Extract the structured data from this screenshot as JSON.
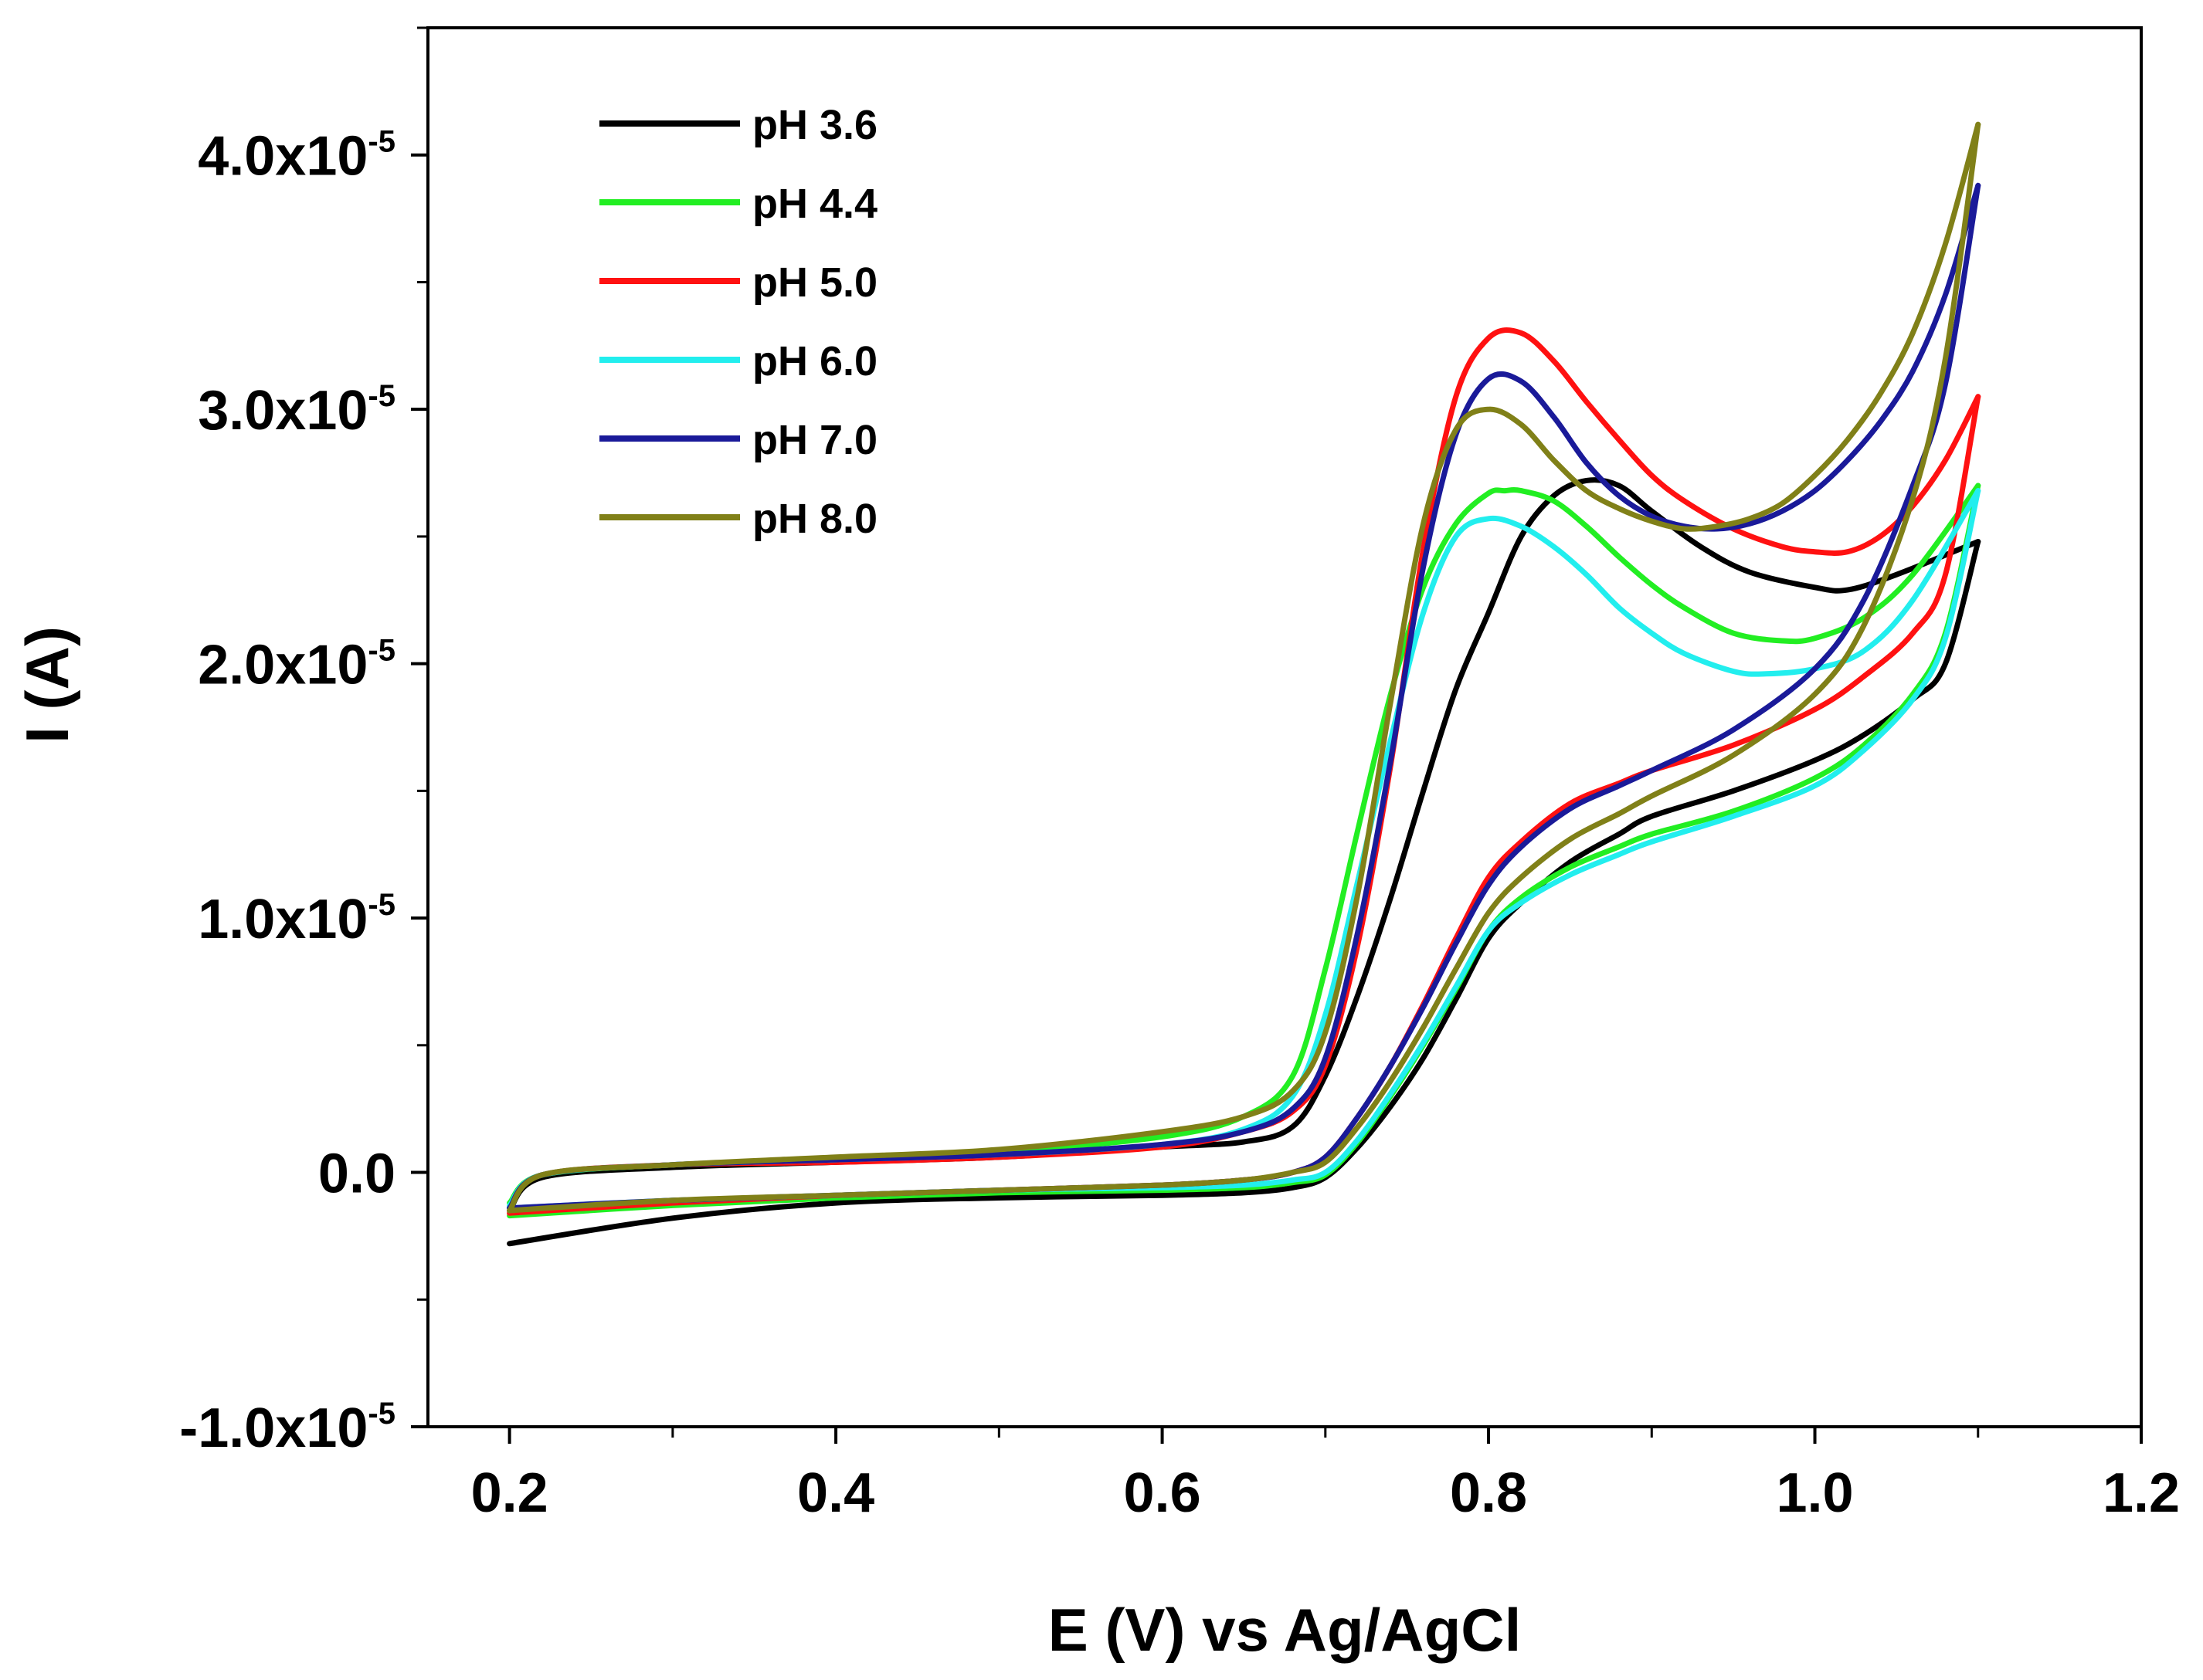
{
  "chart_data": {
    "type": "line",
    "title": "",
    "xlabel": "E (V) vs Ag/AgCl",
    "ylabel": "I (A)",
    "xlim": [
      0.15,
      1.2
    ],
    "ylim": [
      -1e-05,
      4.5e-05
    ],
    "xticks": [
      0.2,
      0.4,
      0.6,
      0.8,
      1.0,
      1.2
    ],
    "xtick_labels": [
      "0.2",
      "0.4",
      "0.6",
      "0.8",
      "1.0",
      "1.2"
    ],
    "yticks": [
      -1e-05,
      0.0,
      1e-05,
      2e-05,
      3e-05,
      4e-05
    ],
    "ytick_labels": [
      {
        "mantissa": "-1.0x10",
        "exp": "-5"
      },
      {
        "mantissa": "0.0",
        "exp": ""
      },
      {
        "mantissa": "1.0x10",
        "exp": "-5"
      },
      {
        "mantissa": "2.0x10",
        "exp": "-5"
      },
      {
        "mantissa": "3.0x10",
        "exp": "-5"
      },
      {
        "mantissa": "4.0x10",
        "exp": "-5"
      }
    ],
    "grid": false,
    "legend_position": "top-left",
    "series": [
      {
        "name": "pH 3.6",
        "color": "#000000",
        "forward": {
          "x": [
            0.2,
            0.3,
            0.4,
            0.5,
            0.6,
            0.65,
            0.68,
            0.7,
            0.72,
            0.74,
            0.76,
            0.78,
            0.8,
            0.82,
            0.85,
            0.88,
            0.9,
            0.95,
            1.0,
            1.03,
            1.06,
            1.08,
            1.1
          ],
          "y": [
            -0.28,
            -0.18,
            -0.12,
            -0.1,
            -0.09,
            -0.08,
            -0.06,
            -0.02,
            0.1,
            0.26,
            0.45,
            0.68,
            0.92,
            1.06,
            1.22,
            1.33,
            1.4,
            1.5,
            1.62,
            1.72,
            1.86,
            2.0,
            2.48
          ]
        },
        "reverse": {
          "x": [
            1.1,
            1.05,
            1.02,
            1.0,
            0.96,
            0.93,
            0.9,
            0.88,
            0.86,
            0.84,
            0.82,
            0.8,
            0.78,
            0.76,
            0.74,
            0.72,
            0.7,
            0.68,
            0.65,
            0.6,
            0.5,
            0.4,
            0.3,
            0.22,
            0.2
          ],
          "y": [
            2.48,
            2.35,
            2.29,
            2.3,
            2.36,
            2.46,
            2.6,
            2.7,
            2.72,
            2.66,
            2.5,
            2.2,
            1.9,
            1.5,
            1.08,
            0.7,
            0.38,
            0.18,
            0.12,
            0.1,
            0.06,
            0.04,
            0.02,
            -0.02,
            -0.15
          ]
        }
      },
      {
        "name": "pH 4.4",
        "color": "#22ee22",
        "forward": {
          "x": [
            0.2,
            0.3,
            0.4,
            0.5,
            0.6,
            0.65,
            0.68,
            0.7,
            0.72,
            0.74,
            0.76,
            0.78,
            0.8,
            0.82,
            0.85,
            0.88,
            0.9,
            0.95,
            1.0,
            1.03,
            1.06,
            1.08,
            1.1
          ],
          "y": [
            -0.17,
            -0.13,
            -0.1,
            -0.08,
            -0.07,
            -0.06,
            -0.04,
            -0.01,
            0.12,
            0.3,
            0.5,
            0.72,
            0.95,
            1.08,
            1.2,
            1.28,
            1.33,
            1.42,
            1.55,
            1.68,
            1.88,
            2.12,
            2.7
          ]
        },
        "reverse": {
          "x": [
            1.1,
            1.06,
            1.03,
            1.0,
            0.98,
            0.95,
            0.92,
            0.9,
            0.88,
            0.86,
            0.84,
            0.82,
            0.81,
            0.8,
            0.78,
            0.76,
            0.74,
            0.72,
            0.7,
            0.68,
            0.65,
            0.6,
            0.5,
            0.4,
            0.3,
            0.22,
            0.2
          ],
          "y": [
            2.7,
            2.35,
            2.18,
            2.1,
            2.09,
            2.12,
            2.22,
            2.31,
            2.42,
            2.54,
            2.64,
            2.68,
            2.68,
            2.67,
            2.55,
            2.3,
            1.88,
            1.35,
            0.8,
            0.38,
            0.22,
            0.14,
            0.08,
            0.05,
            0.03,
            -0.01,
            -0.12
          ]
        }
      },
      {
        "name": "pH 5.0",
        "color": "#ff1111",
        "forward": {
          "x": [
            0.2,
            0.3,
            0.4,
            0.5,
            0.6,
            0.65,
            0.68,
            0.7,
            0.72,
            0.74,
            0.76,
            0.78,
            0.8,
            0.82,
            0.85,
            0.88,
            0.9,
            0.95,
            1.0,
            1.03,
            1.06,
            1.08,
            1.1
          ],
          "y": [
            -0.16,
            -0.12,
            -0.09,
            -0.07,
            -0.05,
            -0.03,
            0.0,
            0.06,
            0.22,
            0.42,
            0.66,
            0.92,
            1.16,
            1.3,
            1.45,
            1.53,
            1.58,
            1.68,
            1.82,
            1.95,
            2.12,
            2.35,
            3.05
          ]
        },
        "reverse": {
          "x": [
            1.1,
            1.08,
            1.06,
            1.04,
            1.02,
            1.0,
            0.98,
            0.95,
            0.92,
            0.9,
            0.88,
            0.86,
            0.84,
            0.82,
            0.8,
            0.78,
            0.76,
            0.74,
            0.72,
            0.7,
            0.68,
            0.65,
            0.6,
            0.5,
            0.4,
            0.3,
            0.22,
            0.2
          ],
          "y": [
            3.05,
            2.8,
            2.62,
            2.5,
            2.44,
            2.44,
            2.46,
            2.53,
            2.64,
            2.74,
            2.88,
            3.03,
            3.19,
            3.3,
            3.28,
            3.05,
            2.45,
            1.6,
            0.9,
            0.42,
            0.24,
            0.16,
            0.1,
            0.06,
            0.04,
            0.03,
            -0.01,
            -0.14
          ]
        }
      },
      {
        "name": "pH 6.0",
        "color": "#22eeee",
        "forward": {
          "x": [
            0.2,
            0.3,
            0.4,
            0.5,
            0.6,
            0.65,
            0.68,
            0.7,
            0.72,
            0.74,
            0.76,
            0.78,
            0.8,
            0.82,
            0.85,
            0.88,
            0.9,
            0.95,
            1.0,
            1.03,
            1.06,
            1.08,
            1.1
          ],
          "y": [
            -0.14,
            -0.11,
            -0.09,
            -0.07,
            -0.06,
            -0.05,
            -0.03,
            0.0,
            0.13,
            0.31,
            0.51,
            0.73,
            0.95,
            1.06,
            1.17,
            1.25,
            1.3,
            1.4,
            1.52,
            1.66,
            1.86,
            2.1,
            2.68
          ]
        },
        "reverse": {
          "x": [
            1.1,
            1.06,
            1.03,
            1.0,
            0.97,
            0.95,
            0.92,
            0.9,
            0.88,
            0.86,
            0.84,
            0.82,
            0.8,
            0.78,
            0.76,
            0.74,
            0.72,
            0.7,
            0.68,
            0.65,
            0.6,
            0.5,
            0.4,
            0.3,
            0.22,
            0.2
          ],
          "y": [
            2.68,
            2.25,
            2.05,
            1.98,
            1.96,
            1.97,
            2.04,
            2.12,
            2.22,
            2.35,
            2.46,
            2.54,
            2.57,
            2.5,
            2.2,
            1.7,
            1.15,
            0.62,
            0.3,
            0.17,
            0.11,
            0.07,
            0.05,
            0.03,
            -0.01,
            -0.13
          ]
        }
      },
      {
        "name": "pH 7.0",
        "color": "#1a1a99",
        "forward": {
          "x": [
            0.2,
            0.3,
            0.4,
            0.5,
            0.6,
            0.65,
            0.68,
            0.7,
            0.72,
            0.74,
            0.76,
            0.78,
            0.8,
            0.82,
            0.85,
            0.88,
            0.9,
            0.95,
            1.0,
            1.03,
            1.06,
            1.08,
            1.1
          ],
          "y": [
            -0.14,
            -0.11,
            -0.09,
            -0.07,
            -0.05,
            -0.03,
            0.0,
            0.06,
            0.22,
            0.42,
            0.65,
            0.9,
            1.13,
            1.28,
            1.43,
            1.52,
            1.58,
            1.74,
            1.98,
            2.25,
            2.7,
            3.1,
            3.88
          ]
        },
        "reverse": {
          "x": [
            1.1,
            1.08,
            1.06,
            1.04,
            1.02,
            1.0,
            0.98,
            0.96,
            0.94,
            0.92,
            0.9,
            0.88,
            0.86,
            0.84,
            0.82,
            0.8,
            0.78,
            0.76,
            0.74,
            0.72,
            0.7,
            0.68,
            0.65,
            0.6,
            0.5,
            0.4,
            0.3,
            0.22,
            0.2
          ],
          "y": [
            3.88,
            3.45,
            3.15,
            2.95,
            2.8,
            2.68,
            2.6,
            2.55,
            2.53,
            2.54,
            2.58,
            2.66,
            2.79,
            2.97,
            3.11,
            3.12,
            2.9,
            2.38,
            1.62,
            0.95,
            0.45,
            0.25,
            0.16,
            0.11,
            0.07,
            0.05,
            0.03,
            -0.01,
            -0.14
          ]
        }
      },
      {
        "name": "pH 8.0",
        "color": "#808018",
        "forward": {
          "x": [
            0.2,
            0.3,
            0.4,
            0.5,
            0.6,
            0.65,
            0.68,
            0.7,
            0.72,
            0.74,
            0.76,
            0.78,
            0.8,
            0.82,
            0.85,
            0.88,
            0.9,
            0.95,
            1.0,
            1.03,
            1.06,
            1.08,
            1.1
          ],
          "y": [
            -0.15,
            -0.11,
            -0.09,
            -0.07,
            -0.05,
            -0.03,
            0.0,
            0.04,
            0.18,
            0.36,
            0.57,
            0.8,
            1.02,
            1.16,
            1.31,
            1.41,
            1.48,
            1.64,
            1.88,
            2.15,
            2.65,
            3.2,
            4.12
          ]
        },
        "reverse": {
          "x": [
            1.1,
            1.08,
            1.06,
            1.04,
            1.02,
            1.0,
            0.98,
            0.96,
            0.94,
            0.92,
            0.9,
            0.88,
            0.86,
            0.84,
            0.82,
            0.8,
            0.78,
            0.76,
            0.74,
            0.72,
            0.7,
            0.68,
            0.65,
            0.6,
            0.5,
            0.4,
            0.3,
            0.22,
            0.2
          ],
          "y": [
            4.12,
            3.65,
            3.3,
            3.06,
            2.88,
            2.74,
            2.63,
            2.57,
            2.54,
            2.53,
            2.56,
            2.61,
            2.68,
            2.8,
            2.94,
            3.0,
            2.92,
            2.55,
            1.85,
            1.1,
            0.55,
            0.32,
            0.22,
            0.16,
            0.09,
            0.06,
            0.03,
            -0.01,
            -0.15
          ]
        }
      }
    ]
  }
}
